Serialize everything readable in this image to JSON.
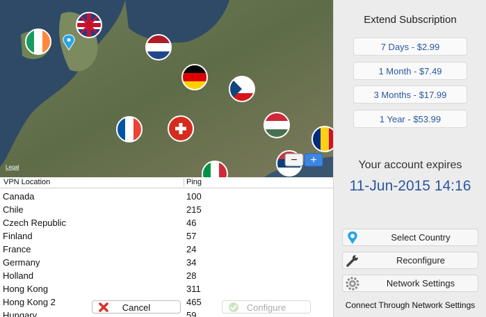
{
  "map": {
    "legal": "Legal",
    "zoom_out": "−",
    "zoom_in": "+"
  },
  "table": {
    "headers": [
      "VPN Location",
      "Ping"
    ],
    "rows": [
      [
        "Canada",
        "100"
      ],
      [
        "Chile",
        "215"
      ],
      [
        "Czech Republic",
        "46"
      ],
      [
        "Finland",
        "57"
      ],
      [
        "France",
        "24"
      ],
      [
        "Germany",
        "34"
      ],
      [
        "Holland",
        "28"
      ],
      [
        "Hong Kong",
        "311"
      ],
      [
        "Hong Kong 2",
        "465"
      ],
      [
        "Hungary",
        "59"
      ]
    ]
  },
  "buttons": {
    "cancel": "Cancel",
    "configure": "Configure"
  },
  "sidebar": {
    "title": "Extend Subscription",
    "options": [
      "7 Days - $2.99",
      "1 Month - $7.49",
      "3 Months - $17.99",
      "1 Year - $53.99"
    ],
    "expires_label": "Your account expires",
    "expires_date": "11-Jun-2015 14:16",
    "actions": [
      "Select Country",
      "Reconfigure",
      "Network Settings"
    ],
    "footer": "Connect Through Network Settings"
  }
}
